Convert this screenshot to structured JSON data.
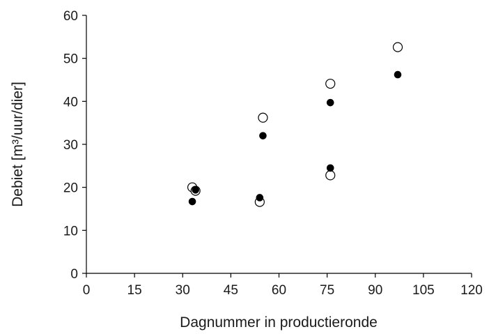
{
  "chart_data": {
    "type": "scatter",
    "title": "",
    "xlabel": "Dagnummer in productieronde",
    "ylabel": "Debiet [m³/uur/dier]",
    "xlim": [
      0,
      120
    ],
    "ylim": [
      0,
      60
    ],
    "xticks": [
      "0",
      "15",
      "30",
      "45",
      "60",
      "75",
      "90",
      "105",
      "120"
    ],
    "yticks": [
      "0",
      "10",
      "20",
      "30",
      "40",
      "50",
      "60"
    ],
    "grid": false,
    "legend": "none",
    "series": [
      {
        "marker": "open-circle",
        "color": "#000000",
        "points": [
          {
            "x": 33,
            "y": 20.0
          },
          {
            "x": 34,
            "y": 19.2
          },
          {
            "x": 54,
            "y": 16.6
          },
          {
            "x": 55,
            "y": 36.2
          },
          {
            "x": 76,
            "y": 44.1
          },
          {
            "x": 76,
            "y": 22.8
          },
          {
            "x": 97,
            "y": 52.6
          }
        ]
      },
      {
        "marker": "filled-circle",
        "color": "#000000",
        "points": [
          {
            "x": 33,
            "y": 16.7
          },
          {
            "x": 34,
            "y": 19.4
          },
          {
            "x": 54,
            "y": 17.6
          },
          {
            "x": 55,
            "y": 32.0
          },
          {
            "x": 76,
            "y": 39.7
          },
          {
            "x": 76,
            "y": 24.5
          },
          {
            "x": 97,
            "y": 46.2
          }
        ]
      }
    ]
  }
}
